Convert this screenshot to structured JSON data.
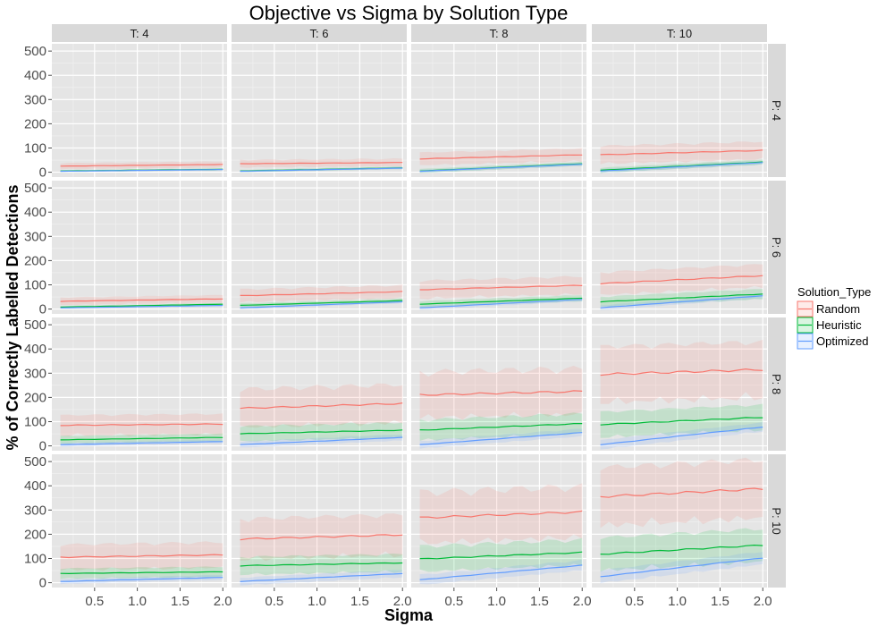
{
  "chart_data": {
    "type": "line",
    "title": "Objective vs Sigma by Solution Type",
    "xlabel": "Sigma",
    "ylabel": "% of Correctly Labelled Detections",
    "xlim": [
      0.0,
      2.05
    ],
    "ylim": [
      -20,
      530
    ],
    "xticks": [
      0.5,
      1.0,
      1.5,
      2.0
    ],
    "xtick_labels": [
      "0.5",
      "1.0",
      "1.5",
      "2.0"
    ],
    "yticks": [
      0,
      100,
      200,
      300,
      400,
      500
    ],
    "ytick_labels": [
      "0",
      "100",
      "200",
      "300",
      "400",
      "500"
    ],
    "grid": true,
    "legend": {
      "title": "Solution_Type",
      "placement": "right",
      "entries": [
        "Random",
        "Heuristic",
        "Optimized"
      ]
    },
    "colors": {
      "Random": "#F8766D",
      "Heuristic": "#00BA38",
      "Optimized": "#619CFF"
    },
    "x": [
      0.1,
      0.2,
      0.3,
      0.4,
      0.5,
      0.6,
      0.7,
      0.8,
      0.9,
      1.0,
      1.1,
      1.2,
      1.3,
      1.4,
      1.5,
      1.6,
      1.7,
      1.8,
      1.9,
      2.0
    ],
    "col_facet_labels": [
      "T: 4",
      "T: 6",
      "T: 8",
      "T: 10"
    ],
    "row_facet_labels": [
      "P: 4",
      "P: 6",
      "P: 8",
      "P: 10"
    ],
    "panels": [
      {
        "row": "P: 4",
        "col": "T: 4",
        "series": [
          {
            "name": "Random",
            "start": 25,
            "end": 32,
            "band": 12
          },
          {
            "name": "Heuristic",
            "start": 5,
            "end": 12,
            "band": 4
          },
          {
            "name": "Optimized",
            "start": 4,
            "end": 11,
            "band": 3
          }
        ]
      },
      {
        "row": "P: 4",
        "col": "T: 6",
        "series": [
          {
            "name": "Random",
            "start": 35,
            "end": 40,
            "band": 15
          },
          {
            "name": "Heuristic",
            "start": 5,
            "end": 18,
            "band": 5
          },
          {
            "name": "Optimized",
            "start": 4,
            "end": 17,
            "band": 4
          }
        ]
      },
      {
        "row": "P: 4",
        "col": "T: 8",
        "series": [
          {
            "name": "Random",
            "start": 55,
            "end": 72,
            "band": 25
          },
          {
            "name": "Heuristic",
            "start": 5,
            "end": 35,
            "band": 8
          },
          {
            "name": "Optimized",
            "start": 4,
            "end": 33,
            "band": 6
          }
        ]
      },
      {
        "row": "P: 4",
        "col": "T: 10",
        "series": [
          {
            "name": "Random",
            "start": 72,
            "end": 90,
            "band": 35
          },
          {
            "name": "Heuristic",
            "start": 8,
            "end": 42,
            "band": 10
          },
          {
            "name": "Optimized",
            "start": 5,
            "end": 40,
            "band": 8
          }
        ]
      },
      {
        "row": "P: 6",
        "col": "T: 4",
        "series": [
          {
            "name": "Random",
            "start": 32,
            "end": 42,
            "band": 15
          },
          {
            "name": "Heuristic",
            "start": 8,
            "end": 20,
            "band": 5
          },
          {
            "name": "Optimized",
            "start": 5,
            "end": 15,
            "band": 4
          }
        ]
      },
      {
        "row": "P: 6",
        "col": "T: 6",
        "series": [
          {
            "name": "Random",
            "start": 55,
            "end": 72,
            "band": 25
          },
          {
            "name": "Heuristic",
            "start": 15,
            "end": 35,
            "band": 8
          },
          {
            "name": "Optimized",
            "start": 5,
            "end": 30,
            "band": 6
          }
        ]
      },
      {
        "row": "P: 6",
        "col": "T: 8",
        "series": [
          {
            "name": "Random",
            "start": 80,
            "end": 98,
            "band": 35
          },
          {
            "name": "Heuristic",
            "start": 20,
            "end": 45,
            "band": 12
          },
          {
            "name": "Optimized",
            "start": 5,
            "end": 40,
            "band": 8
          }
        ]
      },
      {
        "row": "P: 6",
        "col": "T: 10",
        "series": [
          {
            "name": "Random",
            "start": 105,
            "end": 138,
            "band": 45
          },
          {
            "name": "Heuristic",
            "start": 30,
            "end": 62,
            "band": 20
          },
          {
            "name": "Optimized",
            "start": 5,
            "end": 55,
            "band": 10
          }
        ]
      },
      {
        "row": "P: 8",
        "col": "T: 4",
        "series": [
          {
            "name": "Random",
            "start": 85,
            "end": 90,
            "band": 40
          },
          {
            "name": "Heuristic",
            "start": 25,
            "end": 35,
            "band": 15
          },
          {
            "name": "Optimized",
            "start": 5,
            "end": 18,
            "band": 8
          }
        ]
      },
      {
        "row": "P: 8",
        "col": "T: 6",
        "series": [
          {
            "name": "Random",
            "start": 155,
            "end": 175,
            "band": 75
          },
          {
            "name": "Heuristic",
            "start": 50,
            "end": 65,
            "band": 30
          },
          {
            "name": "Optimized",
            "start": 5,
            "end": 35,
            "band": 12
          }
        ]
      },
      {
        "row": "P: 8",
        "col": "T: 8",
        "series": [
          {
            "name": "Random",
            "start": 210,
            "end": 225,
            "band": 90
          },
          {
            "name": "Heuristic",
            "start": 65,
            "end": 92,
            "band": 40
          },
          {
            "name": "Optimized",
            "start": 5,
            "end": 55,
            "band": 15
          }
        ]
      },
      {
        "row": "P: 8",
        "col": "T: 10",
        "series": [
          {
            "name": "Random",
            "start": 295,
            "end": 315,
            "band": 110
          },
          {
            "name": "Heuristic",
            "start": 88,
            "end": 118,
            "band": 50
          },
          {
            "name": "Optimized",
            "start": 5,
            "end": 78,
            "band": 18
          }
        ]
      },
      {
        "row": "P: 10",
        "col": "T: 4",
        "series": [
          {
            "name": "Random",
            "start": 105,
            "end": 115,
            "band": 50
          },
          {
            "name": "Heuristic",
            "start": 38,
            "end": 45,
            "band": 20
          },
          {
            "name": "Optimized",
            "start": 5,
            "end": 22,
            "band": 10
          }
        ]
      },
      {
        "row": "P: 10",
        "col": "T: 6",
        "series": [
          {
            "name": "Random",
            "start": 180,
            "end": 198,
            "band": 80
          },
          {
            "name": "Heuristic",
            "start": 70,
            "end": 82,
            "band": 35
          },
          {
            "name": "Optimized",
            "start": 5,
            "end": 38,
            "band": 15
          }
        ]
      },
      {
        "row": "P: 10",
        "col": "T: 8",
        "series": [
          {
            "name": "Random",
            "start": 268,
            "end": 292,
            "band": 100
          },
          {
            "name": "Heuristic",
            "start": 98,
            "end": 125,
            "band": 50
          },
          {
            "name": "Optimized",
            "start": 12,
            "end": 72,
            "band": 20
          }
        ]
      },
      {
        "row": "P: 10",
        "col": "T: 10",
        "series": [
          {
            "name": "Random",
            "start": 355,
            "end": 388,
            "band": 115
          },
          {
            "name": "Heuristic",
            "start": 118,
            "end": 155,
            "band": 65
          },
          {
            "name": "Optimized",
            "start": 25,
            "end": 102,
            "band": 25
          }
        ]
      }
    ]
  }
}
